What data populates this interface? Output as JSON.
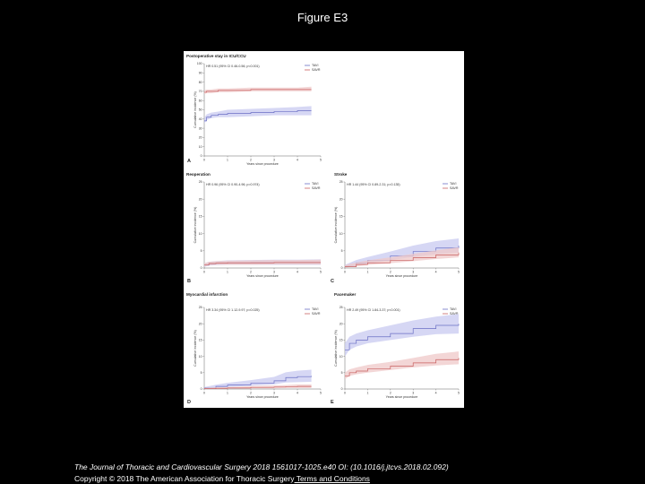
{
  "slide": {
    "title": "Figure E3"
  },
  "footer": {
    "citation": "The Journal of Thoracic and Cardiovascular Surgery 2018 1561017-1025.e40 OI: (10.1016/j.jtcvs.2018.02.092)",
    "copyright": "Copyright © 2018 The American Association for Thoracic Surgery",
    "terms_link": " Terms and Conditions"
  },
  "colors": {
    "tavi": "#6a6fc4",
    "savr": "#c86060",
    "tavi_band": "#c8caf0",
    "savr_band": "#efc8c8"
  },
  "chart_data": [
    {
      "panel": "A",
      "type": "line",
      "title": "Postoperative stay in ICU/CCU",
      "hr_text": "HR 0.51 (95% CI 0.46-0.56; p<0.001)",
      "xlabel": "Years since procedure",
      "ylabel": "Cumulative incidence (%)",
      "xlim": [
        0,
        5
      ],
      "ylim": [
        0,
        100
      ],
      "xticks": [
        "0",
        "1",
        "2",
        "3",
        "4",
        "5"
      ],
      "yticks": [
        "0",
        "10",
        "20",
        "30",
        "40",
        "50",
        "60",
        "70",
        "80",
        "90",
        "100"
      ],
      "legend": [
        "TAVI",
        "SAVR"
      ],
      "series": [
        {
          "name": "TAVI",
          "x": [
            0,
            0.1,
            0.3,
            0.6,
            1,
            2,
            3,
            4,
            4.6
          ],
          "y": [
            38,
            42,
            44,
            45,
            46,
            47,
            48,
            49,
            49
          ],
          "lower": [
            35,
            39,
            41,
            42,
            42,
            43,
            44,
            44,
            44
          ],
          "upper": [
            41,
            45,
            47,
            48,
            50,
            51,
            52,
            53,
            54
          ]
        },
        {
          "name": "SAVR",
          "x": [
            0,
            0.1,
            0.3,
            0.6,
            1,
            2,
            3,
            4,
            4.6
          ],
          "y": [
            69,
            70,
            70,
            71,
            71,
            72,
            72,
            72,
            72
          ],
          "lower": [
            67,
            68,
            68,
            69,
            69,
            70,
            70,
            70,
            70
          ],
          "upper": [
            71,
            72,
            72,
            73,
            73,
            74,
            74,
            74,
            75
          ]
        }
      ]
    },
    {
      "panel": "B",
      "type": "line",
      "title": "Reoperation",
      "hr_text": "HR 0.96 (95% CI 0.90-4.96; p=0.974)",
      "xlabel": "Years since procedure",
      "ylabel": "Cumulative incidence (%)",
      "xlim": [
        0,
        5
      ],
      "ylim": [
        0,
        25
      ],
      "xticks": [
        "0",
        "1",
        "2",
        "3",
        "4",
        "5"
      ],
      "yticks": [
        "0",
        "5",
        "10",
        "15",
        "20",
        "25"
      ],
      "legend": [
        "TAVI",
        "SAVR"
      ],
      "series": [
        {
          "name": "TAVI",
          "x": [
            0,
            0.2,
            0.5,
            1,
            2,
            3,
            4,
            5
          ],
          "y": [
            0.8,
            1.2,
            1.4,
            1.5,
            1.6,
            1.6,
            1.6,
            1.6
          ],
          "lower": [
            0.3,
            0.7,
            0.8,
            0.9,
            0.9,
            0.9,
            0.9,
            0.9
          ],
          "upper": [
            1.3,
            1.8,
            2.0,
            2.2,
            2.3,
            2.4,
            2.4,
            2.5
          ]
        },
        {
          "name": "SAVR",
          "x": [
            0,
            0.2,
            0.5,
            1,
            2,
            3,
            4,
            5
          ],
          "y": [
            0.9,
            1.3,
            1.4,
            1.5,
            1.5,
            1.6,
            1.6,
            1.6
          ],
          "lower": [
            0.4,
            0.8,
            0.9,
            0.9,
            0.9,
            1.0,
            1.0,
            1.0
          ],
          "upper": [
            1.4,
            1.8,
            2.0,
            2.1,
            2.2,
            2.3,
            2.3,
            2.4
          ]
        }
      ]
    },
    {
      "panel": "C",
      "type": "line",
      "title": "Stroke",
      "hr_text": "HR 1.44 (95% CI 0.89-2.31; p=0.135)",
      "xlabel": "Years since procedure",
      "ylabel": "Cumulative incidence (%)",
      "xlim": [
        0,
        5
      ],
      "ylim": [
        0,
        25
      ],
      "xticks": [
        "0",
        "1",
        "2",
        "3",
        "4",
        "5"
      ],
      "yticks": [
        "0",
        "5",
        "10",
        "15",
        "20",
        "25"
      ],
      "legend": [
        "TAVI",
        "SAVR"
      ],
      "series": [
        {
          "name": "TAVI",
          "x": [
            0,
            0.5,
            1,
            2,
            3,
            4,
            5
          ],
          "y": [
            0.5,
            1.5,
            2.2,
            3.5,
            4.8,
            5.8,
            6.5
          ],
          "lower": [
            0.2,
            0.8,
            1.3,
            2.3,
            3.2,
            4.0,
            4.5
          ],
          "upper": [
            0.9,
            2.3,
            3.2,
            4.8,
            6.5,
            7.8,
            8.6
          ]
        },
        {
          "name": "SAVR",
          "x": [
            0,
            0.5,
            1,
            2,
            3,
            4,
            5
          ],
          "y": [
            0.4,
            1.0,
            1.5,
            2.2,
            3.0,
            3.8,
            4.5
          ],
          "lower": [
            0.1,
            0.5,
            0.9,
            1.4,
            2.0,
            2.6,
            3.1
          ],
          "upper": [
            0.8,
            1.6,
            2.2,
            3.1,
            4.1,
            5.1,
            6.0
          ]
        }
      ]
    },
    {
      "panel": "D",
      "type": "line",
      "title": "Myocardial infarction",
      "hr_text": "HR 3.34 (95% CI 1.12-9.97; p=0.025)",
      "xlabel": "Years since procedure",
      "ylabel": "Cumulative incidence (%)",
      "xlim": [
        0,
        5
      ],
      "ylim": [
        0,
        25
      ],
      "xticks": [
        "0",
        "1",
        "2",
        "3",
        "4",
        "5"
      ],
      "yticks": [
        "0",
        "5",
        "10",
        "15",
        "20",
        "25"
      ],
      "legend": [
        "TAVI",
        "SAVR"
      ],
      "series": [
        {
          "name": "TAVI",
          "x": [
            0,
            0.5,
            1,
            2,
            3,
            3.5,
            4,
            4.6
          ],
          "y": [
            0.3,
            0.8,
            1.2,
            1.8,
            2.5,
            3.5,
            3.8,
            4.0
          ],
          "lower": [
            0.1,
            0.4,
            0.6,
            1.0,
            1.4,
            2.0,
            2.1,
            2.2
          ],
          "upper": [
            0.6,
            1.3,
            1.9,
            2.7,
            3.7,
            5.1,
            5.6,
            5.9
          ]
        },
        {
          "name": "SAVR",
          "x": [
            0,
            0.5,
            1,
            2,
            3,
            3.5,
            4,
            4.6
          ],
          "y": [
            0.1,
            0.2,
            0.3,
            0.5,
            0.6,
            0.7,
            0.8,
            0.8
          ],
          "lower": [
            0.0,
            0.0,
            0.1,
            0.2,
            0.2,
            0.3,
            0.3,
            0.3
          ],
          "upper": [
            0.3,
            0.5,
            0.6,
            0.9,
            1.1,
            1.2,
            1.4,
            1.4
          ]
        }
      ]
    },
    {
      "panel": "E",
      "type": "line",
      "title": "Pacemaker",
      "hr_text": "HR 2.49 (95% CI 1.84-3.37; p<0.001)",
      "xlabel": "Years since procedure",
      "ylabel": "Cumulative incidence (%)",
      "xlim": [
        0,
        5
      ],
      "ylim": [
        0,
        25
      ],
      "xticks": [
        "0",
        "1",
        "2",
        "3",
        "4",
        "5"
      ],
      "yticks": [
        "0",
        "5",
        "10",
        "15",
        "20",
        "25"
      ],
      "legend": [
        "TAVI",
        "SAVR"
      ],
      "series": [
        {
          "name": "TAVI",
          "x": [
            0,
            0.2,
            0.5,
            1,
            2,
            3,
            4,
            5
          ],
          "y": [
            12,
            14,
            15,
            16,
            17,
            18.5,
            19.5,
            20
          ],
          "lower": [
            10,
            12,
            13,
            14,
            15,
            16,
            16.8,
            17
          ],
          "upper": [
            14,
            16,
            17,
            18,
            19.5,
            21,
            22.2,
            23
          ]
        },
        {
          "name": "SAVR",
          "x": [
            0,
            0.2,
            0.5,
            1,
            2,
            3,
            4,
            5
          ],
          "y": [
            4,
            5,
            5.5,
            6.2,
            7,
            8,
            9,
            9.5
          ],
          "lower": [
            3,
            4,
            4.5,
            5,
            5.8,
            6.6,
            7.2,
            7.6
          ],
          "upper": [
            5,
            6,
            6.6,
            7.4,
            8.3,
            9.5,
            10.8,
            11.5
          ]
        }
      ]
    }
  ]
}
